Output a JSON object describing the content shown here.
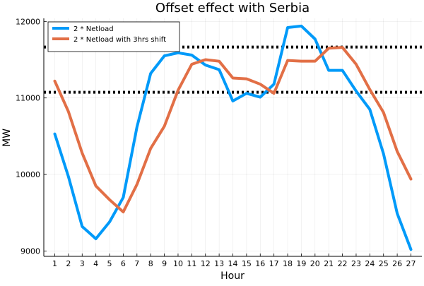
{
  "chart_data": {
    "type": "line",
    "title": "Offset effect with Serbia",
    "xlabel": "Hour",
    "ylabel": "MW",
    "xlim": [
      0.2,
      27.8
    ],
    "ylim": [
      8930,
      12040
    ],
    "x_ticks": [
      1,
      2,
      3,
      4,
      5,
      6,
      7,
      8,
      9,
      10,
      11,
      12,
      13,
      14,
      15,
      16,
      17,
      18,
      19,
      20,
      21,
      22,
      23,
      24,
      25,
      26,
      27
    ],
    "x_tick_labels": [
      "1",
      "2",
      "3",
      "4",
      "5",
      "6",
      "7",
      "8",
      "9",
      "10",
      "11",
      "12",
      "13",
      "14",
      "15",
      "16",
      "17",
      "18",
      "19",
      "20",
      "21",
      "22",
      "23",
      "24",
      "25",
      "26",
      "27"
    ],
    "y_ticks": [
      9000,
      10000,
      11000,
      12000
    ],
    "y_tick_labels": [
      "9000",
      "10000",
      "11000",
      "12000"
    ],
    "grid": true,
    "legend_position": "top-left",
    "x": [
      1,
      2,
      3,
      4,
      5,
      6,
      7,
      8,
      9,
      10,
      11,
      12,
      13,
      14,
      15,
      16,
      17,
      18,
      19,
      20,
      21,
      22,
      23,
      24,
      25,
      26,
      27
    ],
    "series": [
      {
        "name": "2 * Netload",
        "color": "#009af9",
        "values": [
          10530,
          9970,
          9320,
          9160,
          9380,
          9700,
          10620,
          11320,
          11550,
          11590,
          11560,
          11430,
          11370,
          10960,
          11060,
          11010,
          11180,
          11920,
          11940,
          11770,
          11360,
          11360,
          11090,
          10850,
          10270,
          9490,
          9020
        ]
      },
      {
        "name": "2 * Netload with 3hrs shift",
        "color": "#e26f46",
        "values": [
          11220,
          10820,
          10280,
          9850,
          9670,
          9510,
          9870,
          10340,
          10630,
          11100,
          11440,
          11500,
          11480,
          11260,
          11250,
          11180,
          11060,
          11490,
          11480,
          11480,
          11650,
          11660,
          11440,
          11110,
          10810,
          10300,
          9940
        ]
      }
    ],
    "reference_lines": [
      {
        "y": 11665,
        "style": "dotted",
        "color": "#000000"
      },
      {
        "y": 11075,
        "style": "dotted",
        "color": "#000000"
      }
    ]
  }
}
